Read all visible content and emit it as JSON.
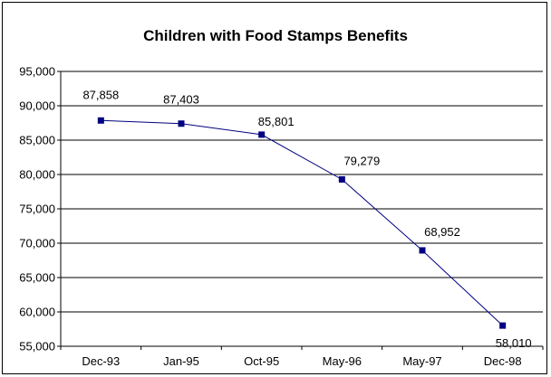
{
  "chart_data": {
    "type": "line",
    "title": "Children with Food Stamps Benefits",
    "categories": [
      "Dec-93",
      "Jan-95",
      "Oct-95",
      "May-96",
      "May-97",
      "Dec-98"
    ],
    "series": [
      {
        "values": [
          87858,
          87403,
          85801,
          79279,
          68952,
          58010
        ],
        "labels": [
          "87,858",
          "87,403",
          "85,801",
          "79,279",
          "68,952",
          "58,010"
        ]
      }
    ],
    "ylim": [
      55000,
      95000
    ],
    "yticks": [
      55000,
      60000,
      65000,
      70000,
      75000,
      80000,
      85000,
      90000,
      95000
    ],
    "ytick_labels": [
      "55,000",
      "60,000",
      "65,000",
      "70,000",
      "75,000",
      "80,000",
      "85,000",
      "90,000",
      "95,000"
    ],
    "grid": true,
    "legend": "none",
    "colors": {
      "line": "#000080",
      "marker": "#000080",
      "grid": "#000000",
      "background": "#ffffff"
    }
  }
}
